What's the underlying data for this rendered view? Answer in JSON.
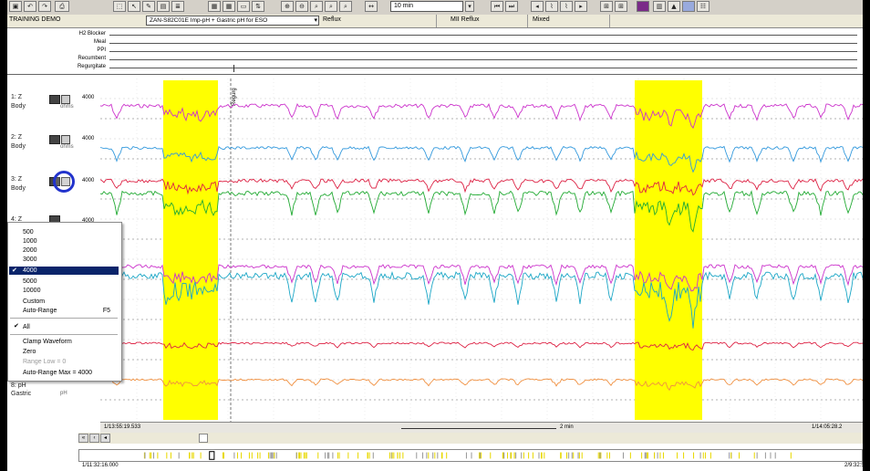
{
  "window": {
    "study_title": "TRAINING DEMO",
    "study_select": "ZAN-S82C01E   Imp-pH + Gastric pH for ESO",
    "mode_label": "Reflux",
    "mii_label": "MII Reflux",
    "mixed_label": "Mixed"
  },
  "toolbar": {
    "zoom_value": "10 min",
    "icons": [
      "save-icon",
      "undo-icon",
      "redo-icon",
      "print-icon",
      "select-icon",
      "pointer-icon",
      "pencil-icon",
      "annotate-icon",
      "list-icon",
      "zoom-in-icon",
      "zoom-out-icon",
      "zoom-fit-icon",
      "zoom-box-icon",
      "first-icon",
      "prev-icon",
      "next-icon",
      "last-icon",
      "analysis-icon",
      "chart-icon",
      "report-icon"
    ]
  },
  "events": {
    "labels": [
      "H2 Blocker",
      "Meal",
      "PPI",
      "Recumbent",
      "Regurgitate"
    ]
  },
  "channels": [
    {
      "label": "1: Z",
      "site": "Body",
      "sub": "ohms",
      "scale": "4000"
    },
    {
      "label": "2: Z",
      "site": "Body",
      "sub": "ohms",
      "scale": "4000"
    },
    {
      "label": "3: Z",
      "site": "Body",
      "sub": "",
      "scale": "4000"
    },
    {
      "label": "4: Z",
      "site": "",
      "sub": "",
      "scale": "4000"
    },
    {
      "label": "8: pH",
      "site": "Gastric",
      "sub": "pH",
      "scale": ""
    }
  ],
  "plot": {
    "marker_label": "Regurg",
    "colors": {
      "magenta": "#cc33cc",
      "blue": "#3399dd",
      "red": "#dd2244",
      "green": "#22aa33",
      "cyan": "#1ba6c6",
      "orange": "#f09040",
      "highlight": "#ffff00"
    }
  },
  "context_menu": {
    "items": [
      "500",
      "1000",
      "2000",
      "3000",
      "4000",
      "5000",
      "10000",
      "Custom",
      "Auto-Range"
    ],
    "selected": "4000",
    "auto_range_shortcut": "F5",
    "all_label": "All",
    "clamp_label": "Clamp Waveform",
    "zero_label": "Zero",
    "range_low_label": "Range Low = 0",
    "auto_range_max_label": "Auto-Range Max = 4000"
  },
  "timebar": {
    "start": "1/13:55:19.533",
    "span": "2 min",
    "end": "1/14:05:28.2"
  },
  "overview": {
    "start": "1/11:32:16.000",
    "end": "2/9:32:5"
  }
}
